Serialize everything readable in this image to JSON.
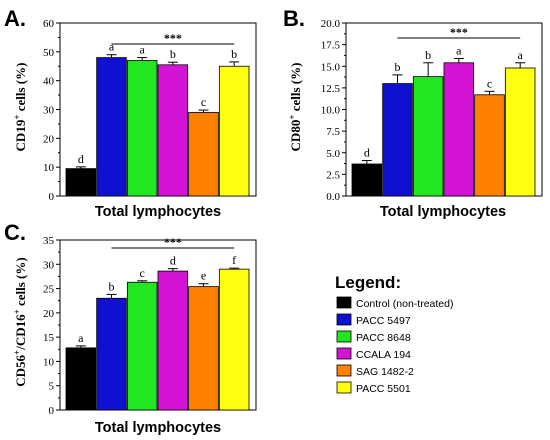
{
  "legend": {
    "title": "Legend:",
    "items": [
      {
        "label": "Control (non-treated)",
        "color": "#000000"
      },
      {
        "label": "PACC 5497",
        "color": "#1010d0"
      },
      {
        "label": "PACC 8648",
        "color": "#22e622"
      },
      {
        "label": "CCALA 194",
        "color": "#d414d4"
      },
      {
        "label": "SAG 1482-2",
        "color": "#ff8000"
      },
      {
        "label": "PACC 5501",
        "color": "#ffff10"
      }
    ]
  },
  "chart_data": [
    {
      "type": "bar",
      "panel": "A.",
      "xlabel": "Total lymphocytes",
      "ylabel": "CD19",
      "ylabel_sup": "+",
      "ylabel_rest": " cells (%)",
      "ylim": [
        0,
        60
      ],
      "yticks": [
        "0",
        "10",
        "20",
        "30",
        "40",
        "50",
        "60"
      ],
      "tick_values": [
        0,
        10,
        20,
        30,
        40,
        50,
        60
      ],
      "categories": [
        "Control (non-treated)",
        "PACC 5497",
        "PACC 8648",
        "CCALA 194",
        "SAG 1482-2",
        "PACC 5501"
      ],
      "values": [
        9.5,
        48,
        47,
        45.5,
        29,
        45
      ],
      "errors": [
        0.6,
        1.0,
        1.0,
        0.9,
        0.8,
        1.5
      ],
      "letters": [
        "d",
        "a",
        "a",
        "b",
        "c",
        "b"
      ],
      "significance": "***"
    },
    {
      "type": "bar",
      "panel": "B.",
      "xlabel": "Total lymphocytes",
      "ylabel": "CD80",
      "ylabel_sup": "+",
      "ylabel_rest": " cells (%)",
      "ylim": [
        0,
        20
      ],
      "yticks": [
        "0.0",
        "2.5",
        "5.0",
        "7.5",
        "10.0",
        "12.5",
        "15.0",
        "17.5",
        "20.0"
      ],
      "tick_values": [
        0,
        2.5,
        5,
        7.5,
        10,
        12.5,
        15,
        17.5,
        20
      ],
      "categories": [
        "Control (non-treated)",
        "PACC 5497",
        "PACC 8648",
        "CCALA 194",
        "SAG 1482-2",
        "PACC 5501"
      ],
      "values": [
        3.7,
        13.0,
        13.8,
        15.4,
        11.7,
        14.8
      ],
      "errors": [
        0.4,
        1.0,
        1.6,
        0.5,
        0.4,
        0.6
      ],
      "letters": [
        "d",
        "b",
        "b",
        "a",
        "c",
        "a"
      ],
      "significance": "***"
    },
    {
      "type": "bar",
      "panel": "C.",
      "xlabel": "Total lymphocytes",
      "ylabel": "CD56",
      "ylabel_sup": "+",
      "ylabel_mid": "/CD16",
      "ylabel_sup2": "+",
      "ylabel_rest": " cells (%)",
      "ylim": [
        0,
        35
      ],
      "yticks": [
        "0",
        "5",
        "10",
        "15",
        "20",
        "25",
        "30",
        "35"
      ],
      "tick_values": [
        0,
        5,
        10,
        15,
        20,
        25,
        30,
        35
      ],
      "categories": [
        "Control (non-treated)",
        "PACC 5497",
        "PACC 8648",
        "CCALA 194",
        "SAG 1482-2",
        "PACC 5501"
      ],
      "values": [
        12.8,
        23.0,
        26.3,
        28.6,
        25.4,
        29.0
      ],
      "errors": [
        0.4,
        0.8,
        0.3,
        0.5,
        0.6,
        0.2
      ],
      "letters": [
        "a",
        "b",
        "c",
        "d",
        "e",
        "f"
      ],
      "significance": "***"
    }
  ]
}
